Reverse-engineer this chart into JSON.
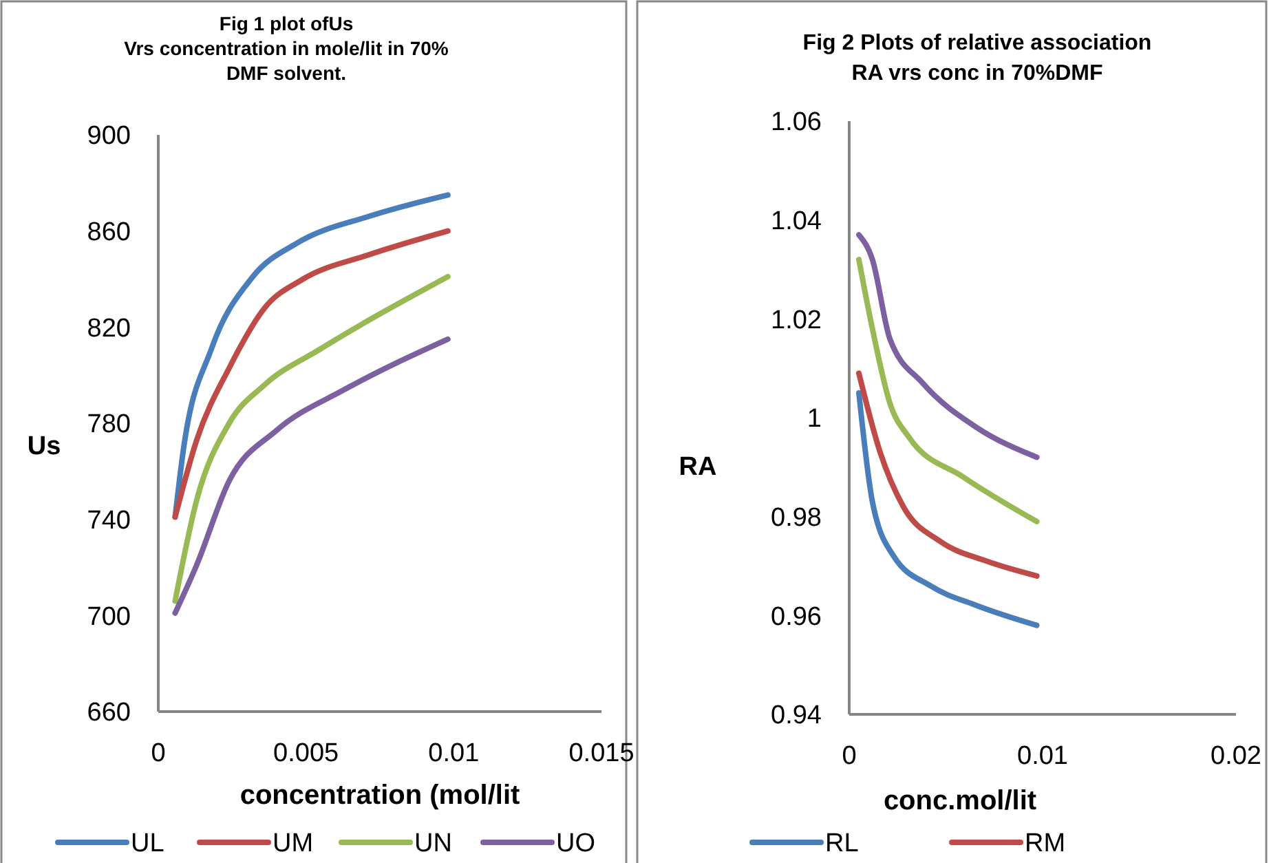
{
  "chart_data": [
    {
      "type": "line",
      "title": "Fig 1 plot ofUs\nVrs concentration in mole/lit in 70%\nDMF solvent.",
      "xlabel": "concentration (mol/lit",
      "ylabel": "Us",
      "xlim": [
        0,
        0.015
      ],
      "xticks": [
        0,
        0.005,
        0.01,
        0.015
      ],
      "ylim": [
        660,
        900
      ],
      "yticks": [
        660,
        700,
        740,
        780,
        820,
        860,
        900
      ],
      "grid": false,
      "legend": "bottom",
      "marker": "none",
      "line_style": "solid",
      "series": [
        {
          "name": "UL",
          "color": "#4a7ebb",
          "x": [
            0.00057,
            0.00085,
            0.0018,
            0.0032,
            0.0047,
            0.0071,
            0.0098
          ],
          "values": [
            741,
            769,
            811,
            841,
            855,
            866,
            875
          ]
        },
        {
          "name": "UM",
          "color": "#be4b48",
          "x": [
            0.00057,
            0.0013,
            0.0024,
            0.0036,
            0.0049,
            0.0071,
            0.0098
          ],
          "values": [
            741,
            773,
            803,
            828,
            840,
            850,
            860
          ]
        },
        {
          "name": "UN",
          "color": "#98b954",
          "x": [
            0.00057,
            0.0013,
            0.0024,
            0.0036,
            0.0055,
            0.0098
          ],
          "values": [
            706,
            748,
            780,
            796,
            811,
            841
          ]
        },
        {
          "name": "UO",
          "color": "#7d60a0",
          "x": [
            0.00057,
            0.0013,
            0.0024,
            0.004,
            0.0063,
            0.0098
          ],
          "values": [
            701,
            721,
            756,
            777,
            794,
            815
          ]
        }
      ]
    },
    {
      "type": "line",
      "title": "Fig 2 Plots of relative association\nRA vrs conc in 70%DMF",
      "xlabel": "conc.mol/lit",
      "ylabel": "RA",
      "xlim": [
        0,
        0.02
      ],
      "xticks": [
        0,
        0.01,
        0.02
      ],
      "ylim": [
        0.94,
        1.06
      ],
      "yticks": [
        0.94,
        0.96,
        0.98,
        1,
        1.02,
        1.04,
        1.06
      ],
      "grid": false,
      "legend": "bottom",
      "marker": "none",
      "line_style": "solid",
      "series": [
        {
          "name": "RL",
          "color": "#4a7ebb",
          "x": [
            0.0005,
            0.0012,
            0.0023,
            0.0042,
            0.0066,
            0.0097
          ],
          "values": [
            1.005,
            0.983,
            0.972,
            0.966,
            0.962,
            0.958
          ]
        },
        {
          "name": "RM",
          "color": "#be4b48",
          "x": [
            0.0005,
            0.0016,
            0.0028,
            0.0047,
            0.0071,
            0.0097
          ],
          "values": [
            1.009,
            0.993,
            0.982,
            0.975,
            0.971,
            0.968
          ]
        },
        {
          "color": "#98b954",
          "x": [
            0.0005,
            0.0012,
            0.0021,
            0.0031,
            0.0059,
            0.0097
          ],
          "values": [
            1.032,
            1.018,
            1.003,
            0.996,
            0.988,
            0.979
          ]
        },
        {
          "color": "#7d60a0",
          "x": [
            0.0005,
            0.0012,
            0.0021,
            0.0038,
            0.0066,
            0.0097
          ],
          "values": [
            1.037,
            1.032,
            1.016,
            1.007,
            0.998,
            0.992
          ]
        }
      ]
    }
  ]
}
